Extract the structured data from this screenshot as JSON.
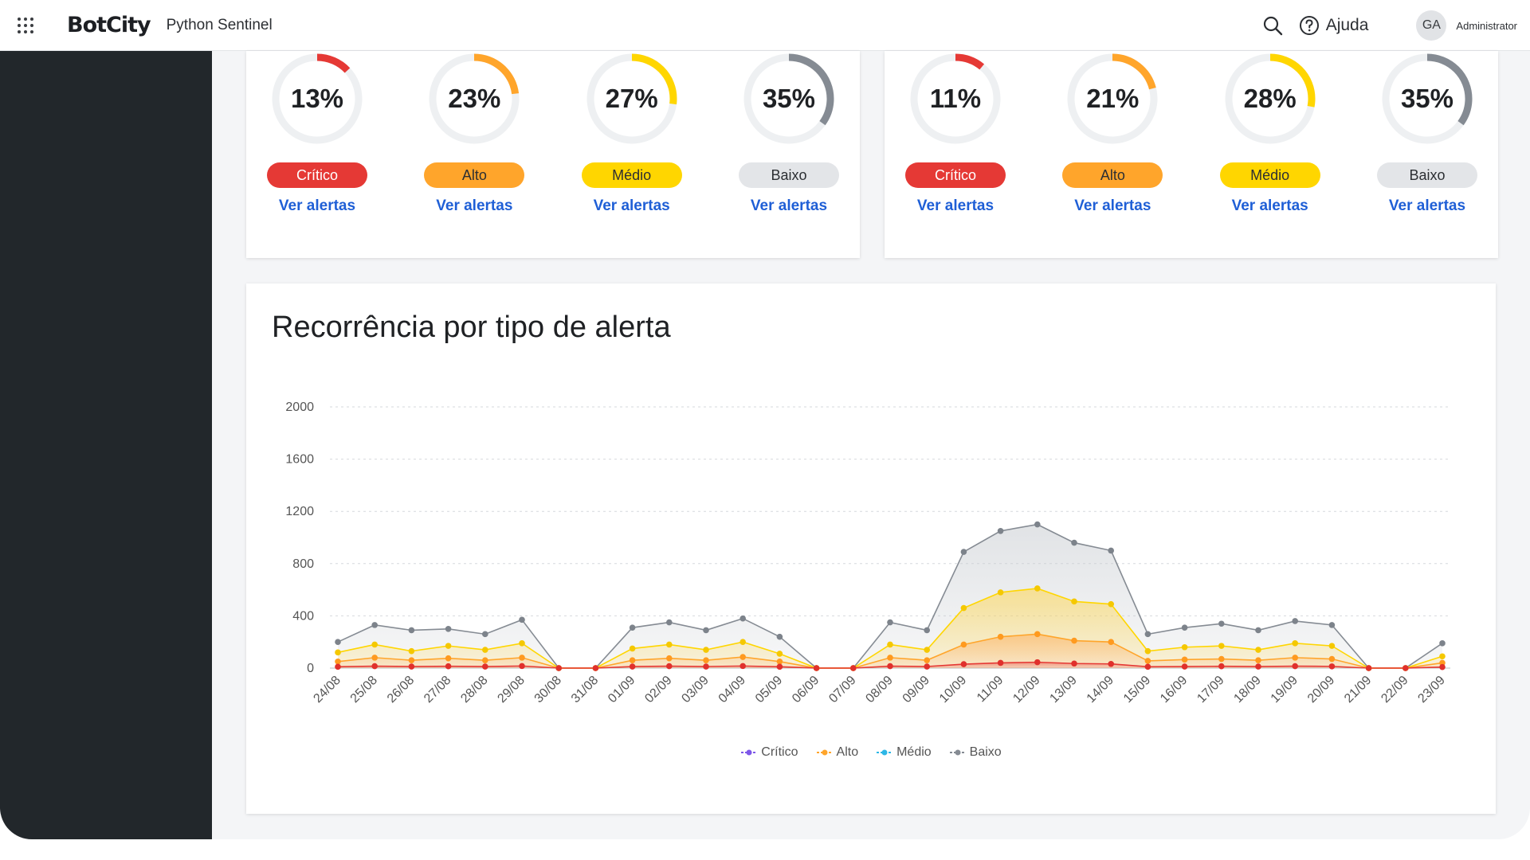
{
  "topbar": {
    "brand": "BotCity",
    "product": "Python Sentinel",
    "help_label": "Ajuda",
    "avatar_initials": "GA",
    "user_name": "Administrator"
  },
  "colors": {
    "critico": "#e53935",
    "alto": "#ffa52b",
    "medio": "#ffd600",
    "baixo": "#858b93",
    "link": "#1f5fd6"
  },
  "left_panel": {
    "gauges": [
      {
        "percent": 13,
        "label": "13%",
        "severity": "Crítico",
        "link": "Ver alertas"
      },
      {
        "percent": 23,
        "label": "23%",
        "severity": "Alto",
        "link": "Ver alertas"
      },
      {
        "percent": 27,
        "label": "27%",
        "severity": "Médio",
        "link": "Ver alertas"
      },
      {
        "percent": 35,
        "label": "35%",
        "severity": "Baixo",
        "link": "Ver alertas"
      }
    ]
  },
  "right_panel": {
    "gauges": [
      {
        "percent": 11,
        "label": "11%",
        "severity": "Crítico",
        "link": "Ver alertas"
      },
      {
        "percent": 21,
        "label": "21%",
        "severity": "Alto",
        "link": "Ver alertas"
      },
      {
        "percent": 28,
        "label": "28%",
        "severity": "Médio",
        "link": "Ver alertas"
      },
      {
        "percent": 35,
        "label": "35%",
        "severity": "Baixo",
        "link": "Ver alertas"
      }
    ]
  },
  "chart_data": {
    "type": "area",
    "title": "Recorrência por tipo de alerta",
    "xlabel": "",
    "ylabel": "",
    "ylim": [
      0,
      2000
    ],
    "yticks": [
      0,
      400,
      800,
      1200,
      1600,
      2000
    ],
    "categories": [
      "24/08",
      "25/08",
      "26/08",
      "27/08",
      "28/08",
      "29/08",
      "30/08",
      "31/08",
      "01/09",
      "02/09",
      "03/09",
      "04/09",
      "05/09",
      "06/09",
      "07/09",
      "08/09",
      "09/09",
      "10/09",
      "11/09",
      "12/09",
      "13/09",
      "14/09",
      "15/09",
      "16/09",
      "17/09",
      "18/09",
      "19/09",
      "20/09",
      "21/09",
      "22/09",
      "23/09"
    ],
    "series": [
      {
        "name": "Baixo",
        "cumulative": [
          200,
          330,
          290,
          300,
          260,
          370,
          0,
          0,
          310,
          350,
          290,
          380,
          240,
          0,
          0,
          350,
          290,
          890,
          1050,
          1100,
          960,
          900,
          260,
          310,
          340,
          290,
          360,
          330,
          0,
          0,
          190
        ]
      },
      {
        "name": "Médio",
        "cumulative": [
          120,
          180,
          130,
          170,
          140,
          190,
          0,
          0,
          150,
          180,
          140,
          200,
          110,
          0,
          0,
          180,
          140,
          460,
          580,
          610,
          510,
          490,
          130,
          160,
          170,
          140,
          190,
          170,
          0,
          0,
          90
        ]
      },
      {
        "name": "Alto",
        "cumulative": [
          50,
          80,
          60,
          75,
          60,
          80,
          0,
          0,
          60,
          75,
          60,
          85,
          50,
          0,
          0,
          80,
          60,
          180,
          240,
          260,
          210,
          200,
          55,
          65,
          70,
          60,
          80,
          70,
          0,
          0,
          40
        ]
      },
      {
        "name": "Crítico",
        "cumulative": [
          10,
          15,
          12,
          14,
          12,
          16,
          0,
          0,
          12,
          15,
          12,
          16,
          10,
          0,
          0,
          15,
          12,
          30,
          40,
          45,
          35,
          32,
          10,
          12,
          14,
          12,
          15,
          13,
          0,
          0,
          8
        ]
      }
    ],
    "legend": [
      "Crítico",
      "Alto",
      "Médio",
      "Baixo"
    ],
    "legend_colors": [
      "#7d57e8",
      "#ffa52b",
      "#2db7e6",
      "#858b93"
    ],
    "grid": true
  }
}
